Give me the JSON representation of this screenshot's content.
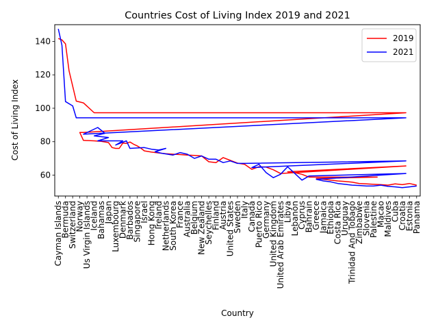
{
  "chart_data": {
    "type": "line",
    "title": "Countries Cost of Living Index 2019 and 2021",
    "xlabel": "Country",
    "ylabel": "Cost of Living Index",
    "ylim": [
      47.5,
      150
    ],
    "yticks": [
      60,
      80,
      100,
      120,
      140
    ],
    "grid": false,
    "legend": "top-right",
    "categories": [
      "Cayman Islands",
      "Bermuda",
      "Switzerland",
      "Norway",
      "Us Virgin Islands",
      "Iceland",
      "Bahamas",
      "Japan",
      "Luxembourg",
      "Denmark",
      "Barbados",
      "Singapore",
      "Israel",
      "Hong Kong",
      "Ireland",
      "Netherlands",
      "South Korea",
      "France",
      "Australia",
      "Belgium",
      "New Zealand",
      "Seychelles",
      "Finland",
      "Austria",
      "United States",
      "Sweden",
      "Italy",
      "Canada",
      "Puerto Rico",
      "Germany",
      "United Kingdom",
      "United Arab Emirates",
      "Libya",
      "Lebanon",
      "Cyprus",
      "Bahrain",
      "Greece",
      "Jamaica",
      "Ethiopia",
      "Costa Rica",
      "Uruguay",
      "Trinidad And Tobago",
      "Zimbabwe",
      "Slovenia",
      "Palestine",
      "Macao",
      "Maldives",
      "Cuba",
      "Croatia",
      "Estonia",
      "Panama"
    ],
    "series": [
      {
        "name": "2019",
        "color": "#ff0000",
        "x": [
          0,
          0.5,
          1,
          1.5,
          2,
          2.5,
          3,
          3.5,
          4,
          4.5,
          5,
          5.5,
          6,
          6.5,
          7,
          7.5,
          8,
          8.5,
          9,
          9.5,
          10,
          10.5,
          11,
          11.5,
          12,
          12.5,
          13,
          13.5,
          14,
          14.5,
          15,
          15.5,
          16,
          16.5,
          17,
          17.5,
          18,
          18.5,
          19,
          19.5,
          20,
          20.5,
          21,
          21.5,
          22,
          22.5,
          23,
          23.5,
          24,
          24.5,
          25,
          25.5,
          26,
          26.5,
          27,
          27.5,
          28,
          28.5,
          29,
          29.5,
          30,
          30.5,
          31,
          31.5,
          32,
          32.5,
          33,
          33.5,
          34,
          34.5,
          35,
          35.5,
          36,
          36.5,
          37,
          37.5,
          38,
          38.5,
          39,
          39.5,
          40,
          40.5,
          41,
          41.5,
          42,
          42.5,
          43,
          43.5,
          44,
          44.5,
          45,
          45.5,
          46,
          46.5,
          47,
          47.5,
          48,
          48.5,
          49,
          49.5,
          50
        ],
        "y": [
          141.7,
          140.9,
          138.5,
          122.4,
          104.3,
          103.2,
          97.3,
          97.1,
          97.1,
          97.1,
          97.1,
          97.1,
          97.1,
          97.1,
          97.1,
          97.1,
          97.1,
          97.1,
          97.1,
          97.1,
          97.1,
          97.1,
          97.1,
          97.1,
          97.1,
          97.1,
          97.1,
          97.1,
          97.1,
          97.1,
          97.1,
          97.1,
          97.1,
          97.1,
          97.1,
          97.1,
          97.1,
          97.1,
          97.1,
          97.1,
          97.1,
          97.1,
          97.1,
          97.1,
          97.1,
          97.1,
          97.1,
          97.1,
          97.1,
          97.1,
          97.1,
          97.1,
          97.1,
          97.1,
          97.1,
          97.1,
          97.1,
          97.1,
          97.1,
          97.1,
          97.1,
          97.1,
          97.1,
          97.1,
          97.1,
          97.1,
          97.1,
          97.1,
          97.1,
          97.1,
          97.1,
          97.1,
          97.1,
          97.1,
          97.1,
          97.1,
          97.1,
          97.1,
          97.1,
          97.1,
          97.1,
          97.1,
          97.1,
          97.1,
          97.1,
          97.1,
          97.1,
          97.1,
          97.1,
          97.1,
          97.1,
          97.1,
          97.1,
          97.1,
          97.1,
          97.1,
          97.1,
          97.1,
          97.1,
          97.1,
          97.1
        ]
      },
      {
        "name": "2021",
        "color": "#0000ff",
        "x": [
          0,
          0.5,
          1,
          1.5,
          2,
          2.5,
          3,
          3.5,
          4,
          4.5,
          5,
          5.5,
          6,
          6.5,
          7,
          7.5,
          8,
          8.5,
          9,
          9.5,
          10,
          10.5,
          11,
          11.5,
          12,
          12.5,
          13,
          13.5,
          14,
          14.5,
          15,
          15.5,
          16,
          16.5,
          17,
          17.5,
          18,
          18.5,
          19,
          19.5,
          20,
          20.5,
          21,
          21.5,
          22,
          22.5,
          23,
          23.5,
          24,
          24.5,
          25,
          25.5,
          26,
          26.5,
          27,
          27.5,
          28,
          28.5,
          29,
          29.5,
          30,
          30.5,
          31,
          31.5,
          32,
          32.5,
          33,
          33.5,
          34,
          34.5,
          35,
          35.5,
          36,
          36.5,
          37,
          37.5,
          38,
          38.5,
          39,
          39.5,
          40,
          40.5,
          41,
          41.5,
          42,
          42.5,
          43,
          43.5,
          44,
          44.5,
          45,
          45.5,
          46,
          46.5,
          47,
          47.5,
          48,
          48.5,
          49,
          49.5,
          50
        ],
        "y": [
          147.5,
          137.7,
          104.0,
          101.4,
          94.3,
          94.3,
          94.3,
          94.3,
          94.3,
          94.3,
          94.3,
          94.3,
          94.3,
          94.3,
          94.3,
          94.3,
          94.3,
          94.3,
          94.3,
          94.3,
          94.3,
          94.3,
          94.3,
          94.3,
          94.3,
          94.3,
          94.3,
          94.3,
          94.3,
          94.3,
          94.3,
          94.3,
          94.3,
          94.3,
          94.3,
          94.3,
          94.3,
          94.3,
          94.3,
          94.3,
          94.3,
          94.3,
          94.3,
          94.3,
          94.3,
          94.3,
          94.3,
          94.3,
          94.3,
          94.3,
          94.3,
          94.3,
          94.3,
          94.3,
          94.3,
          94.3,
          94.3,
          94.3,
          94.3,
          94.3,
          94.3,
          94.3,
          94.3,
          94.3,
          94.3,
          94.3,
          94.3,
          94.3,
          94.3,
          94.3,
          94.3,
          94.3,
          94.3,
          94.3,
          94.3,
          94.3,
          94.3,
          94.3,
          94.3,
          94.3,
          94.3,
          94.3,
          94.3,
          94.3,
          94.3,
          94.3,
          94.3,
          94.3,
          94.3,
          94.3,
          94.3,
          94.3,
          94.3,
          94.3,
          94.3,
          94.3,
          94.3,
          94.3,
          94.3,
          94.3,
          94.3
        ]
      }
    ],
    "polylines": {
      "2019": [
        [
          0,
          141.7
        ],
        [
          0.5,
          140.9
        ],
        [
          1,
          138.5
        ],
        [
          1.5,
          122.4
        ],
        [
          2.5,
          104.3
        ],
        [
          3.5,
          103.2
        ],
        [
          5,
          97.3
        ],
        [
          48.5,
          97.3
        ],
        [
          3.5,
          85.5
        ],
        [
          3.0,
          85.5
        ],
        [
          3.5,
          80.8
        ],
        [
          5,
          80.5
        ],
        [
          6,
          80.2
        ],
        [
          7,
          79.5
        ],
        [
          7.5,
          76.5
        ],
        [
          8,
          76.0
        ],
        [
          8.5,
          76.0
        ],
        [
          9,
          79.2
        ],
        [
          9.5,
          79.0
        ],
        [
          10,
          79.8
        ],
        [
          10.5,
          78.5
        ],
        [
          11,
          77.5
        ],
        [
          11.5,
          76.2
        ],
        [
          12,
          74.5
        ],
        [
          13,
          73.8
        ],
        [
          14,
          73.3
        ],
        [
          15,
          72.8
        ],
        [
          16,
          72.5
        ],
        [
          17,
          72.3
        ],
        [
          18,
          72.0
        ],
        [
          19,
          71.8
        ],
        [
          20,
          71.5
        ],
        [
          21,
          68.0
        ],
        [
          22,
          67.5
        ],
        [
          23,
          70.5
        ],
        [
          24,
          68.8
        ],
        [
          25,
          67.2
        ],
        [
          26,
          66.5
        ],
        [
          27,
          63.5
        ],
        [
          28,
          65.0
        ],
        [
          29,
          64.8
        ],
        [
          30,
          63.2
        ],
        [
          31,
          61.0
        ],
        [
          48.5,
          65.5
        ],
        [
          32,
          62.0
        ],
        [
          33,
          61.5
        ],
        [
          34,
          60.5
        ],
        [
          35,
          58.8
        ],
        [
          42,
          58.8
        ],
        [
          44.5,
          58.8
        ],
        [
          36,
          58.0
        ],
        [
          37,
          57.5
        ],
        [
          38,
          57.0
        ],
        [
          39,
          56.5
        ],
        [
          40,
          56.2
        ],
        [
          41,
          55.8
        ],
        [
          42,
          55.0
        ],
        [
          43,
          54.8
        ],
        [
          44,
          54.5
        ],
        [
          45,
          54.3
        ],
        [
          46,
          54.0
        ],
        [
          47,
          54.8
        ],
        [
          48,
          54.3
        ],
        [
          49,
          55.0
        ],
        [
          50,
          54.0
        ]
      ],
      "2021": [
        [
          0,
          147.5
        ],
        [
          0.5,
          137.7
        ],
        [
          1,
          104.0
        ],
        [
          2,
          101.4
        ],
        [
          2.5,
          94.3
        ],
        [
          3,
          94.3
        ],
        [
          6,
          94.3
        ],
        [
          48.5,
          94.3
        ],
        [
          3.5,
          84.5
        ],
        [
          5.5,
          88.5
        ],
        [
          6.5,
          85.0
        ],
        [
          5,
          83.5
        ],
        [
          7,
          82.5
        ],
        [
          5.5,
          80.5
        ],
        [
          9,
          80.5
        ],
        [
          8,
          78.0
        ],
        [
          9.5,
          80.5
        ],
        [
          10,
          76.0
        ],
        [
          12,
          76.5
        ],
        [
          13,
          75.5
        ],
        [
          14,
          75.0
        ],
        [
          15,
          76.0
        ],
        [
          13.5,
          74.0
        ],
        [
          14.5,
          73.0
        ],
        [
          16,
          72.0
        ],
        [
          17,
          73.5
        ],
        [
          18,
          72.5
        ],
        [
          19,
          70.0
        ],
        [
          20,
          71.5
        ],
        [
          21,
          69.5
        ],
        [
          22,
          69.5
        ],
        [
          23,
          67.5
        ],
        [
          24,
          68.5
        ],
        [
          25,
          67.0
        ],
        [
          26,
          67.0
        ],
        [
          48.5,
          68.5
        ],
        [
          27,
          64.5
        ],
        [
          28,
          66.5
        ],
        [
          29,
          61.5
        ],
        [
          30,
          58.5
        ],
        [
          31,
          60.5
        ],
        [
          32,
          65.0
        ],
        [
          33,
          61.0
        ],
        [
          34,
          57.0
        ],
        [
          35,
          59.5
        ],
        [
          48.5,
          61.0
        ],
        [
          36,
          57.5
        ],
        [
          37,
          56.5
        ],
        [
          38,
          56.0
        ],
        [
          39,
          55.0
        ],
        [
          40,
          54.5
        ],
        [
          41,
          54.0
        ],
        [
          42,
          53.8
        ],
        [
          43,
          53.5
        ],
        [
          44,
          53.5
        ],
        [
          45,
          54.0
        ],
        [
          46,
          53.3
        ],
        [
          47,
          53.0
        ],
        [
          48,
          52.5
        ],
        [
          49,
          53.0
        ],
        [
          50,
          53.5
        ]
      ]
    }
  }
}
